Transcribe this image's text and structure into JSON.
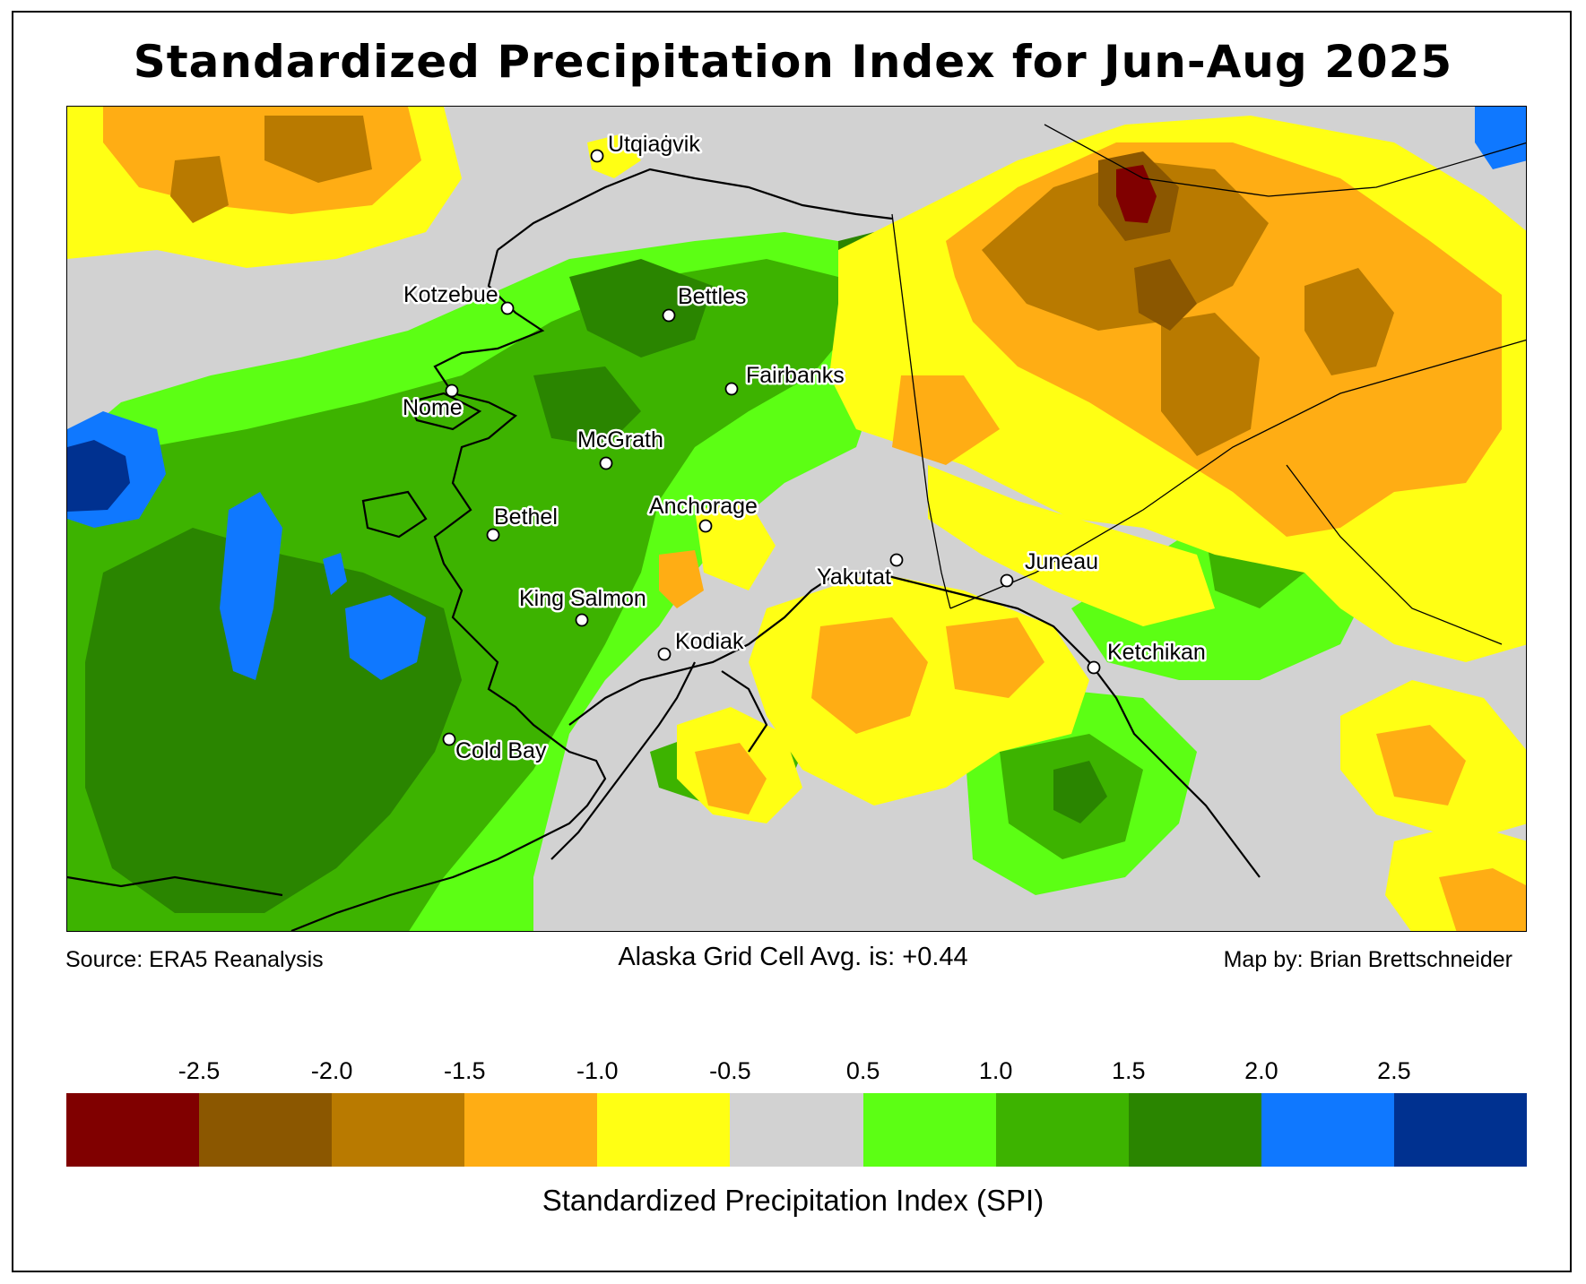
{
  "title": "Standardized Precipitation Index for Jun-Aug 2025",
  "source": "Source: ERA5 Reanalysis",
  "average": "Alaska Grid Cell Avg. is: +0.44",
  "credit": "Map by: Brian Brettschneider",
  "colorbar": {
    "label": "Standardized Precipitation Index (SPI)",
    "ticks": [
      "-2.5",
      "-2.0",
      "-1.5",
      "-1.0",
      "-0.5",
      "0.5",
      "1.0",
      "1.5",
      "2.0",
      "2.5"
    ],
    "colors": [
      "#800000",
      "#8b5700",
      "#b97a00",
      "#ffad14",
      "#ffff14",
      "#d2d2d2",
      "#5cff14",
      "#3db300",
      "#2a8500",
      "#0f78ff",
      "#003190"
    ]
  },
  "cities": [
    {
      "name": "Utqiaġvik"
    },
    {
      "name": "Kotzebue"
    },
    {
      "name": "Bettles"
    },
    {
      "name": "Fairbanks"
    },
    {
      "name": "Nome"
    },
    {
      "name": "McGrath"
    },
    {
      "name": "Bethel"
    },
    {
      "name": "Anchorage"
    },
    {
      "name": "Juneau"
    },
    {
      "name": "Yakutat"
    },
    {
      "name": "King Salmon"
    },
    {
      "name": "Kodiak"
    },
    {
      "name": "Ketchikan"
    },
    {
      "name": "Cold Bay"
    }
  ]
}
